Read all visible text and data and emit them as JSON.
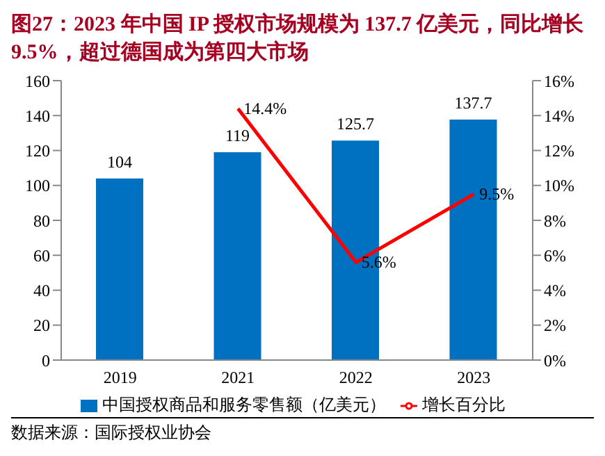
{
  "chart_data": {
    "type": "bar",
    "title": "图27：2023 年中国 IP 授权市场规模为 137.7 亿美元，同比增长 9.5%，超过德国成为第四大市场",
    "annotations": [
      "数据来源：国际授权业协会"
    ],
    "categories": [
      "2019",
      "2021",
      "2022",
      "2023"
    ],
    "series": [
      {
        "name": "中国授权商品和服务零售额（亿美元）",
        "color": "#0070c0",
        "values": [
          104,
          119,
          125.7,
          137.7
        ],
        "value_labels": [
          "104",
          "119",
          "125.7",
          "137.7"
        ]
      },
      {
        "name": "增长百分比",
        "type": "line",
        "axis": "y2",
        "color": "#ff0000",
        "values": [
          null,
          14.4,
          5.6,
          9.5
        ],
        "value_labels": [
          null,
          "14.4%",
          "5.6%",
          "9.5%"
        ]
      }
    ],
    "ylim": [
      0,
      160
    ],
    "yticks": [
      0,
      20,
      40,
      60,
      80,
      100,
      120,
      140,
      160
    ],
    "y2lim": [
      0,
      16
    ],
    "y2ticks": [
      {
        "value": 0,
        "label": "0%"
      },
      {
        "value": 2,
        "label": "2%"
      },
      {
        "value": 4,
        "label": "4%"
      },
      {
        "value": 6,
        "label": "6%"
      },
      {
        "value": 8,
        "label": "8%"
      },
      {
        "value": 10,
        "label": "10%"
      },
      {
        "value": 12,
        "label": "12%"
      },
      {
        "value": 14,
        "label": "14%"
      },
      {
        "value": 16,
        "label": "16%"
      }
    ],
    "grid": false,
    "legend": "bottom",
    "marker": "none",
    "line_style": "solid"
  }
}
